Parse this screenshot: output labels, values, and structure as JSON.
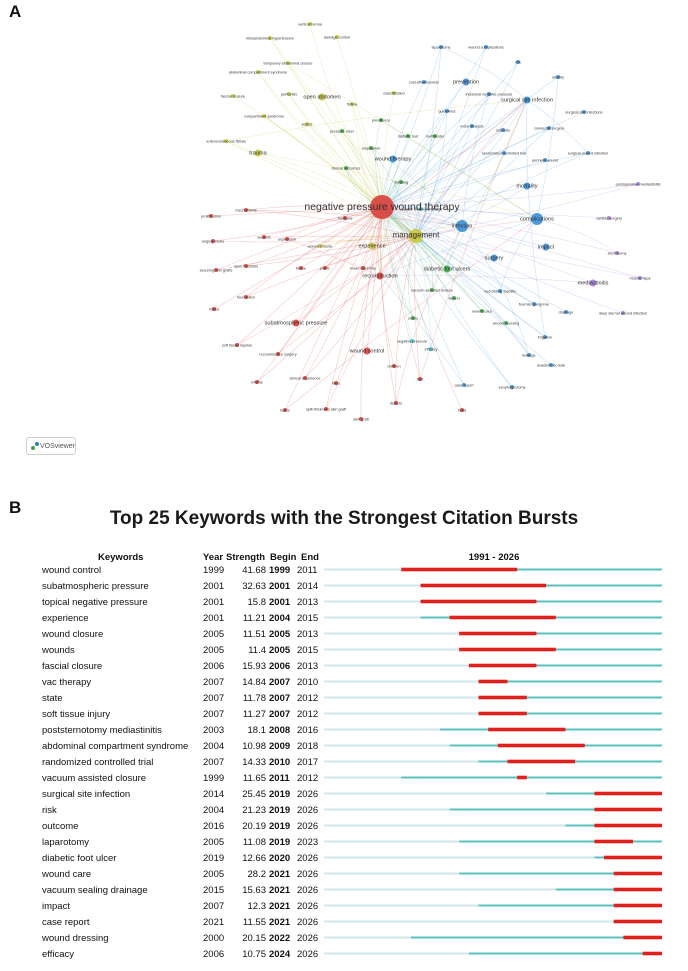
{
  "panel_a": {
    "letter": "A",
    "software_label": "VOSviewer",
    "cluster_colors": {
      "red": "#d9403a",
      "green": "#3fae49",
      "blue": "#3b8fd8",
      "yellow": "#c9c93a",
      "purple": "#a77bd6",
      "cyan": "#3fc6d6"
    },
    "nodes": [
      {
        "label": "negative pressure wound therapy",
        "color": "red",
        "weight": 10,
        "big": true
      },
      {
        "label": "management",
        "color": "yellow",
        "weight": 6,
        "big": true
      },
      {
        "label": "infection",
        "color": "blue",
        "weight": 4
      },
      {
        "label": "complications",
        "color": "blue",
        "weight": 4
      },
      {
        "label": "surgical site infection",
        "color": "blue",
        "weight": 3
      },
      {
        "label": "prevention",
        "color": "blue",
        "weight": 2
      },
      {
        "label": "reconstruction",
        "color": "red",
        "weight": 2
      },
      {
        "label": "surgery",
        "color": "blue",
        "weight": 2
      },
      {
        "label": "open abdomen",
        "color": "yellow",
        "weight": 2
      },
      {
        "label": "trauma",
        "color": "yellow",
        "weight": 2
      },
      {
        "label": "experience",
        "color": "yellow",
        "weight": 2
      },
      {
        "label": "wound therapy",
        "color": "blue",
        "weight": 2
      },
      {
        "label": "diabetic foot ulcers",
        "color": "green",
        "weight": 2
      },
      {
        "label": "impact",
        "color": "blue",
        "weight": 2
      },
      {
        "label": "mortality",
        "color": "blue",
        "weight": 2
      },
      {
        "label": "mediastinitis",
        "color": "purple",
        "weight": 2
      },
      {
        "label": "subatmospheric pressure",
        "color": "red",
        "weight": 2
      },
      {
        "label": "wound control",
        "color": "red",
        "weight": 2
      },
      {
        "label": "laparotomy",
        "color": "blue",
        "weight": 1
      },
      {
        "label": "fascial closure",
        "color": "yellow",
        "weight": 1
      },
      {
        "label": "abdominal compartment syndrome",
        "color": "yellow",
        "weight": 1
      },
      {
        "label": "temporary abdominal closure",
        "color": "yellow",
        "weight": 1
      },
      {
        "label": "intraabdominal hypertension",
        "color": "yellow",
        "weight": 1
      },
      {
        "label": "damage control",
        "color": "yellow",
        "weight": 1
      },
      {
        "label": "wound closure",
        "color": "yellow",
        "weight": 1
      },
      {
        "label": "vertical hernia",
        "color": "yellow",
        "weight": 1
      },
      {
        "label": "peritonitis",
        "color": "yellow",
        "weight": 1
      },
      {
        "label": "fistula",
        "color": "yellow",
        "weight": 1
      },
      {
        "label": "compartment syndrome",
        "color": "yellow",
        "weight": 1
      },
      {
        "label": "sepsis",
        "color": "yellow",
        "weight": 1
      },
      {
        "label": "enterocutaneous fistula",
        "color": "yellow",
        "weight": 1
      },
      {
        "label": "classification",
        "color": "yellow",
        "weight": 1
      },
      {
        "label": "wound complications",
        "color": "blue",
        "weight": 1
      },
      {
        "label": "obesity",
        "color": "blue",
        "weight": 1
      },
      {
        "label": "risk",
        "color": "blue",
        "weight": 1
      },
      {
        "label": "cost-effectiveness",
        "color": "blue",
        "weight": 1
      },
      {
        "label": "incisional negative pressure",
        "color": "blue",
        "weight": 1
      },
      {
        "label": "surgical site infections",
        "color": "blue",
        "weight": 1
      },
      {
        "label": "meta-analysis",
        "color": "blue",
        "weight": 1
      },
      {
        "label": "colorectal surgery",
        "color": "blue",
        "weight": 1
      },
      {
        "label": "outcome",
        "color": "blue",
        "weight": 1
      },
      {
        "label": "perineal wound",
        "color": "blue",
        "weight": 1
      },
      {
        "label": "surgical wound infection",
        "color": "blue",
        "weight": 1
      },
      {
        "label": "randomized controlled trial",
        "color": "blue",
        "weight": 1
      },
      {
        "label": "guidelines",
        "color": "blue",
        "weight": 1
      },
      {
        "label": "prevalence",
        "color": "green",
        "weight": 1
      },
      {
        "label": "multicenter",
        "color": "green",
        "weight": 1
      },
      {
        "label": "diabetic foot",
        "color": "green",
        "weight": 1
      },
      {
        "label": "amputation",
        "color": "green",
        "weight": 1
      },
      {
        "label": "pressure ulcer",
        "color": "green",
        "weight": 1
      },
      {
        "label": "clinical outcomes",
        "color": "green",
        "weight": 1
      },
      {
        "label": "dressing",
        "color": "green",
        "weight": 1
      },
      {
        "label": "wound care",
        "color": "green",
        "weight": 1
      },
      {
        "label": "wound",
        "color": "green",
        "weight": 1
      },
      {
        "label": "vacuum-assisted closure",
        "color": "green",
        "weight": 1
      },
      {
        "label": "skin graft",
        "color": "red",
        "weight": 1
      },
      {
        "label": "split-thickness skin graft",
        "color": "red",
        "weight": 1
      },
      {
        "label": "burns",
        "color": "red",
        "weight": 1
      },
      {
        "label": "infants",
        "color": "red",
        "weight": 1
      },
      {
        "label": "flaps",
        "color": "red",
        "weight": 1
      },
      {
        "label": "defects",
        "color": "red",
        "weight": 1
      },
      {
        "label": "head",
        "color": "red",
        "weight": 1
      },
      {
        "label": "soft tissue injuries",
        "color": "red",
        "weight": 1
      },
      {
        "label": "reconstructive surgery",
        "color": "red",
        "weight": 1
      },
      {
        "label": "clinical experience",
        "color": "red",
        "weight": 1
      },
      {
        "label": "children",
        "color": "red",
        "weight": 1
      },
      {
        "label": "foot",
        "color": "red",
        "weight": 1
      },
      {
        "label": "fractures",
        "color": "red",
        "weight": 1
      },
      {
        "label": "open fractures",
        "color": "red",
        "weight": 1
      },
      {
        "label": "securing skin grafts",
        "color": "red",
        "weight": 1
      },
      {
        "label": "foundation",
        "color": "red",
        "weight": 1
      },
      {
        "label": "model",
        "color": "red",
        "weight": 1
      },
      {
        "label": "mechanisms",
        "color": "red",
        "weight": 1
      },
      {
        "label": "proliferation",
        "color": "red",
        "weight": 1
      },
      {
        "label": "angiogenesis",
        "color": "red",
        "weight": 1
      },
      {
        "label": "expression",
        "color": "red",
        "weight": 1
      },
      {
        "label": "wounds",
        "color": "red",
        "weight": 1
      },
      {
        "label": "tissue",
        "color": "red",
        "weight": 1
      },
      {
        "label": "pelvic",
        "color": "red",
        "weight": 1
      },
      {
        "label": "lower extremity",
        "color": "red",
        "weight": 1
      },
      {
        "label": "ulcers",
        "color": "green",
        "weight": 1
      },
      {
        "label": "necrotizing fasciitis",
        "color": "blue",
        "weight": 1
      },
      {
        "label": "fournier gangrene",
        "color": "blue",
        "weight": 1
      },
      {
        "label": "wound dressing",
        "color": "green",
        "weight": 1
      },
      {
        "label": "leakage",
        "color": "blue",
        "weight": 1
      },
      {
        "label": "anastomotic leak",
        "color": "blue",
        "weight": 1
      },
      {
        "label": "esophagectomy",
        "color": "blue",
        "weight": 1
      },
      {
        "label": "case report",
        "color": "blue",
        "weight": 1
      },
      {
        "label": "efficacy",
        "color": "cyan",
        "weight": 1
      },
      {
        "label": "drainage",
        "color": "blue",
        "weight": 1
      },
      {
        "label": "irrigation",
        "color": "blue",
        "weight": 1
      },
      {
        "label": "cardiac surgery",
        "color": "purple",
        "weight": 1
      },
      {
        "label": "postoperative mediastinitis",
        "color": "purple",
        "weight": 1
      },
      {
        "label": "sternotomy",
        "color": "purple",
        "weight": 1
      },
      {
        "label": "muscle flaps",
        "color": "purple",
        "weight": 1
      },
      {
        "label": "deep sternal wound infection",
        "color": "purple",
        "weight": 1
      },
      {
        "label": "vacuum sealing drainage",
        "color": "cyan",
        "weight": 1
      },
      {
        "label": "negative pressure",
        "color": "cyan",
        "weight": 1
      }
    ]
  },
  "panel_b": {
    "letter": "B",
    "title": "Top 25 Keywords with the Strongest Citation Bursts",
    "headers": {
      "keywords": "Keywords",
      "year": "Year",
      "strength": "Strength",
      "begin": "Begin",
      "end": "End",
      "range": "1991 - 2026"
    },
    "colors": {
      "burst": "#e0211d",
      "active": "#5bbfbf",
      "inactive": "#cfe7ea"
    }
  },
  "chart_data": {
    "type": "table",
    "title": "Top 25 Keywords with the Strongest Citation Bursts",
    "columns": [
      "Keywords",
      "Year",
      "Strength",
      "Begin",
      "End",
      "1991 - 2026"
    ],
    "timeline": {
      "start": 1991,
      "end": 2026
    },
    "rows": [
      {
        "keyword": "wound control",
        "year": 1999,
        "strength": "41.68",
        "begin": 1999,
        "end": 2011
      },
      {
        "keyword": "subatmospheric pressure",
        "year": 2001,
        "strength": "32.63",
        "begin": 2001,
        "end": 2014
      },
      {
        "keyword": "topical negative pressure",
        "year": 2001,
        "strength": "15.8",
        "begin": 2001,
        "end": 2013
      },
      {
        "keyword": "experience",
        "year": 2001,
        "strength": "11.21",
        "begin": 2004,
        "end": 2015
      },
      {
        "keyword": "wound closure",
        "year": 2005,
        "strength": "11.51",
        "begin": 2005,
        "end": 2013
      },
      {
        "keyword": "wounds",
        "year": 2005,
        "strength": "11.4",
        "begin": 2005,
        "end": 2015
      },
      {
        "keyword": "fascial closure",
        "year": 2006,
        "strength": "15.93",
        "begin": 2006,
        "end": 2013
      },
      {
        "keyword": "vac therapy",
        "year": 2007,
        "strength": "14.84",
        "begin": 2007,
        "end": 2010
      },
      {
        "keyword": "state",
        "year": 2007,
        "strength": "11.78",
        "begin": 2007,
        "end": 2012
      },
      {
        "keyword": "soft tissue injury",
        "year": 2007,
        "strength": "11.27",
        "begin": 2007,
        "end": 2012
      },
      {
        "keyword": "poststernotomy mediastinitis",
        "year": 2003,
        "strength": "18.1",
        "begin": 2008,
        "end": 2016
      },
      {
        "keyword": "abdominal compartment syndrome",
        "year": 2004,
        "strength": "10.98",
        "begin": 2009,
        "end": 2018
      },
      {
        "keyword": "randomized controlled trial",
        "year": 2007,
        "strength": "14.33",
        "begin": 2010,
        "end": 2017
      },
      {
        "keyword": "vacuum assisted closure",
        "year": 1999,
        "strength": "11.65",
        "begin": 2011,
        "end": 2012
      },
      {
        "keyword": "surgical site infection",
        "year": 2014,
        "strength": "25.45",
        "begin": 2019,
        "end": 2026
      },
      {
        "keyword": "risk",
        "year": 2004,
        "strength": "21.23",
        "begin": 2019,
        "end": 2026
      },
      {
        "keyword": "outcome",
        "year": 2016,
        "strength": "20.19",
        "begin": 2019,
        "end": 2026
      },
      {
        "keyword": "laparotomy",
        "year": 2005,
        "strength": "11.08",
        "begin": 2019,
        "end": 2023
      },
      {
        "keyword": "diabetic foot ulcer",
        "year": 2019,
        "strength": "12.66",
        "begin": 2020,
        "end": 2026
      },
      {
        "keyword": "wound care",
        "year": 2005,
        "strength": "28.2",
        "begin": 2021,
        "end": 2026
      },
      {
        "keyword": "vacuum sealing drainage",
        "year": 2015,
        "strength": "15.63",
        "begin": 2021,
        "end": 2026
      },
      {
        "keyword": "impact",
        "year": 2007,
        "strength": "12.3",
        "begin": 2021,
        "end": 2026
      },
      {
        "keyword": "case report",
        "year": 2021,
        "strength": "11.55",
        "begin": 2021,
        "end": 2026
      },
      {
        "keyword": "wound dressing",
        "year": 2000,
        "strength": "20.15",
        "begin": 2022,
        "end": 2026
      },
      {
        "keyword": "efficacy",
        "year": 2006,
        "strength": "10.75",
        "begin": 2024,
        "end": 2026
      }
    ]
  }
}
